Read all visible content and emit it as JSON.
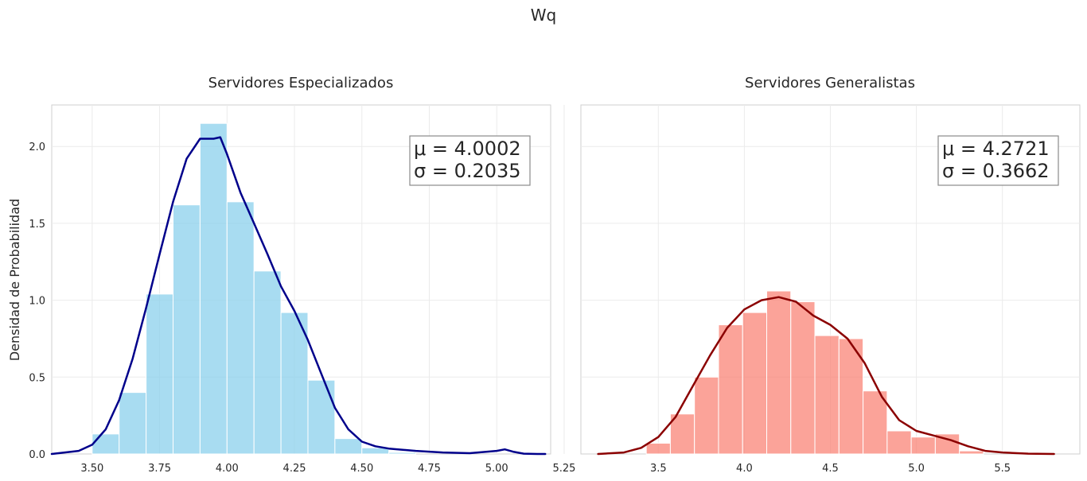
{
  "figure": {
    "suptitle": "Wq"
  },
  "chart_data": [
    {
      "type": "bar",
      "title": "Servidores Especializados",
      "xlabel": "",
      "ylabel": "Densidad de Probabilidad",
      "xlim": [
        3.35,
        5.2
      ],
      "ylim": [
        0,
        2.27
      ],
      "xticks": [
        "3.50",
        "3.75",
        "4.00",
        "4.25",
        "4.50",
        "4.75",
        "5.00",
        "5.25"
      ],
      "yticks": [
        "0.0",
        "0.5",
        "1.0",
        "1.5",
        "2.0"
      ],
      "grid": true,
      "annotation": [
        "μ = 4.0002",
        "σ = 0.2035"
      ],
      "hist": {
        "color": "#87ceeb",
        "bin_edges": [
          3.5,
          3.6,
          3.7,
          3.8,
          3.9,
          4.0,
          4.1,
          4.2,
          4.3,
          4.4,
          4.5,
          4.6,
          4.7,
          4.8,
          4.9,
          5.0
        ],
        "values": [
          0.13,
          0.4,
          1.04,
          1.62,
          2.15,
          1.64,
          1.19,
          0.92,
          0.48,
          0.1,
          0.04,
          0.01,
          0.0,
          0.0,
          0.0
        ]
      },
      "kde": {
        "color": "#00008b",
        "x": [
          3.35,
          3.45,
          3.5,
          3.55,
          3.6,
          3.65,
          3.7,
          3.75,
          3.8,
          3.85,
          3.9,
          3.95,
          3.975,
          4.0,
          4.05,
          4.1,
          4.15,
          4.2,
          4.25,
          4.3,
          4.35,
          4.4,
          4.45,
          4.5,
          4.55,
          4.6,
          4.7,
          4.8,
          4.9,
          5.0,
          5.03,
          5.06,
          5.1,
          5.15,
          5.18
        ],
        "y": [
          0.0,
          0.02,
          0.06,
          0.16,
          0.35,
          0.62,
          0.95,
          1.3,
          1.64,
          1.92,
          2.05,
          2.05,
          2.06,
          1.95,
          1.7,
          1.5,
          1.3,
          1.09,
          0.93,
          0.74,
          0.52,
          0.3,
          0.16,
          0.08,
          0.05,
          0.035,
          0.02,
          0.01,
          0.005,
          0.02,
          0.03,
          0.015,
          0.002,
          0.0,
          0.0
        ]
      }
    },
    {
      "type": "bar",
      "title": "Servidores Generalistas",
      "xlabel": "",
      "ylabel": "",
      "xlim": [
        3.05,
        5.95
      ],
      "ylim": [
        0,
        2.27
      ],
      "xticks": [
        "3.5",
        "4.0",
        "4.5",
        "5.0",
        "5.5"
      ],
      "yticks": [],
      "grid": true,
      "annotation": [
        "μ = 4.2721",
        "σ = 0.3662"
      ],
      "hist": {
        "color": "#fa8072",
        "bin_edges": [
          3.43,
          3.57,
          3.71,
          3.85,
          3.99,
          4.13,
          4.27,
          4.41,
          4.55,
          4.69,
          4.83,
          4.97,
          5.11,
          5.25,
          5.39
        ],
        "values": [
          0.07,
          0.26,
          0.5,
          0.84,
          0.92,
          1.06,
          0.99,
          0.77,
          0.75,
          0.41,
          0.15,
          0.11,
          0.13,
          0.02
        ]
      },
      "kde": {
        "color": "#8b0000",
        "x": [
          3.15,
          3.3,
          3.4,
          3.5,
          3.6,
          3.7,
          3.8,
          3.9,
          4.0,
          4.1,
          4.2,
          4.3,
          4.4,
          4.5,
          4.6,
          4.7,
          4.8,
          4.9,
          5.0,
          5.1,
          5.2,
          5.3,
          5.4,
          5.5,
          5.65,
          5.8
        ],
        "y": [
          0.0,
          0.01,
          0.04,
          0.11,
          0.24,
          0.44,
          0.64,
          0.82,
          0.94,
          1.0,
          1.02,
          0.99,
          0.9,
          0.84,
          0.75,
          0.59,
          0.37,
          0.22,
          0.15,
          0.12,
          0.09,
          0.05,
          0.02,
          0.01,
          0.002,
          0.0
        ]
      }
    }
  ]
}
